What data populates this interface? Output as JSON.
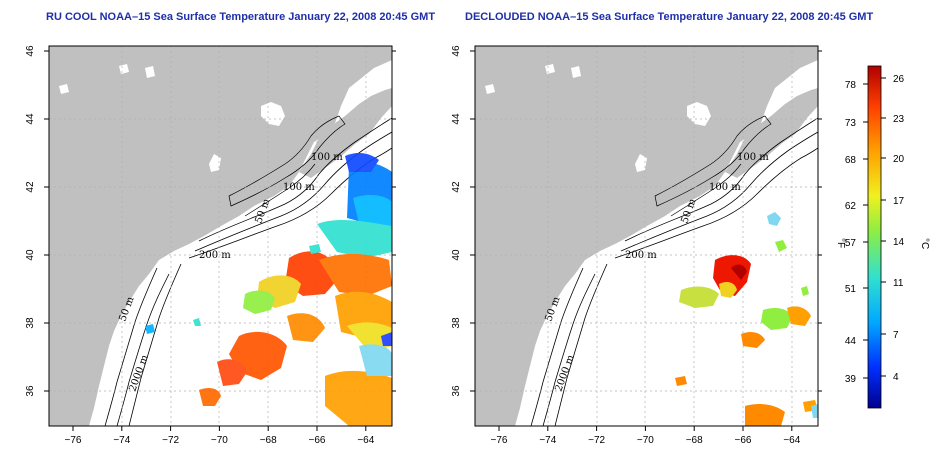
{
  "panels": [
    {
      "id": "left",
      "title": "RU COOL NOAA–15 Sea Surface Temperature January 22, 2008 20:45 GMT",
      "contour_labels": [
        "100 m",
        "100 m",
        "50 m",
        "200 m",
        "50 m",
        "2000 m"
      ]
    },
    {
      "id": "right",
      "title": "DECLOUDED NOAA–15 Sea Surface Temperature January 22, 2008 20:45 GMT",
      "contour_labels": [
        "100 m",
        "100 m",
        "50 m",
        "200 m",
        "50 m",
        "2000 m"
      ]
    }
  ],
  "axes": {
    "x_ticks": [
      "−76",
      "−74",
      "−72",
      "−70",
      "−68",
      "−66",
      "−64"
    ],
    "y_ticks": [
      "36",
      "38",
      "40",
      "42",
      "44",
      "46"
    ]
  },
  "colorbar": {
    "label_f": "°F",
    "label_c": "°C",
    "f_ticks": [
      "78",
      "73",
      "68",
      "62",
      "57",
      "51",
      "44",
      "39"
    ],
    "c_ticks": [
      "26",
      "23",
      "20",
      "17",
      "14",
      "11",
      "7",
      "4"
    ],
    "colors": [
      "#00008f",
      "#0030ff",
      "#00a8ff",
      "#30e0d0",
      "#90ee40",
      "#f0f020",
      "#ffa000",
      "#ff4000",
      "#b00000"
    ]
  },
  "map_colors": {
    "land": "#c0c0c0",
    "water": "#ffffff",
    "grid": "#b0b0b0"
  }
}
